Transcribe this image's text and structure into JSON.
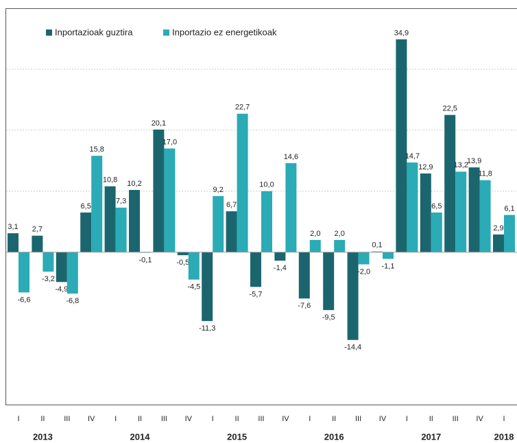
{
  "chart_data": {
    "type": "bar",
    "groups": [
      {
        "name": "2013",
        "categories": [
          "I",
          "II",
          "III",
          "IV"
        ]
      },
      {
        "name": "2014",
        "categories": [
          "I",
          "II",
          "III",
          "IV"
        ]
      },
      {
        "name": "2015",
        "categories": [
          "I",
          "II",
          "III",
          "IV"
        ]
      },
      {
        "name": "2016",
        "categories": [
          "I",
          "II",
          "III",
          "IV"
        ]
      },
      {
        "name": "2017",
        "categories": [
          "I",
          "II",
          "III",
          "IV"
        ]
      },
      {
        "name": "2018",
        "categories": [
          "I"
        ]
      }
    ],
    "series": [
      {
        "name": "Inportazioak guztira",
        "color": "#1b666e",
        "values": [
          3.1,
          2.7,
          -4.9,
          6.5,
          10.8,
          10.2,
          20.1,
          -0.5,
          -11.3,
          6.7,
          -5.7,
          -1.4,
          -7.6,
          -9.5,
          -14.4,
          0.1,
          34.9,
          12.9,
          22.5,
          13.9,
          2.9
        ],
        "value_labels": [
          "3,1",
          "2,7",
          "-4,9",
          "6,5",
          "10,8",
          "10,2",
          "20,1",
          "-0,5",
          "-11,3",
          "6,7",
          "-5,7",
          "-1,4",
          "-7,6",
          "-9,5",
          "-14,4",
          "0,1",
          "34,9",
          "12,9",
          "22,5",
          "13,9",
          "2,9"
        ]
      },
      {
        "name": "Inportazio ez energetikoak",
        "color": "#2aabb6",
        "values": [
          -6.6,
          -3.2,
          -6.8,
          15.8,
          7.3,
          -0.1,
          17.0,
          -4.5,
          9.2,
          22.7,
          10.0,
          14.6,
          2.0,
          2.0,
          -2.0,
          -1.1,
          14.7,
          6.5,
          13.2,
          11.8,
          6.1
        ],
        "value_labels": [
          "-6,6",
          "-3,2",
          "-6,8",
          "15,8",
          "7,3",
          "-0,1",
          "17,0",
          "-4,5",
          "9,2",
          "22,7",
          "10,0",
          "14,6",
          "2,0",
          "2,0",
          "-2,0",
          "-1,1",
          "14,7",
          "6,5",
          "13,2",
          "11,8",
          "6,1"
        ]
      }
    ],
    "ylim": [
      -25,
      40
    ],
    "yticks": [
      10,
      20,
      30
    ],
    "grid": true
  }
}
